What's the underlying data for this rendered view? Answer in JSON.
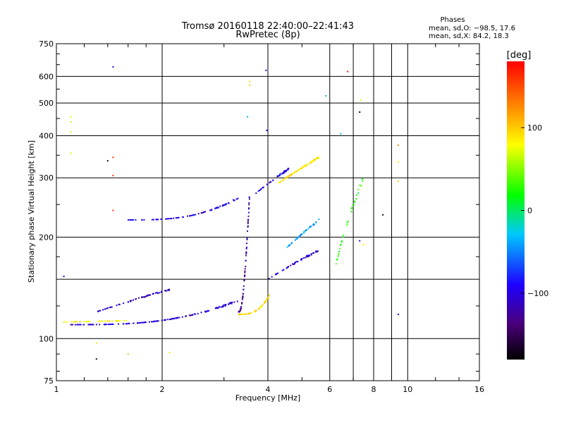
{
  "chart_data": {
    "type": "scatter",
    "title": "Tromsø 20160118 22:40:00–22:41:43",
    "subtitle": "RwPretec (8p)",
    "xlabel": "Frequency [MHz]",
    "ylabel": "Stationary phase Virtual Height [km]",
    "xscale": "log",
    "yscale": "log",
    "xlim": [
      1,
      16
    ],
    "ylim": [
      75,
      750
    ],
    "x_ticks": [
      1,
      2,
      4,
      6,
      8,
      10,
      16
    ],
    "x_tick_labels": [
      "1",
      "2",
      "4",
      "6",
      "8",
      "10",
      "16"
    ],
    "x_minor_gridlines": [
      7,
      9
    ],
    "y_ticks": [
      75,
      100,
      200,
      300,
      400,
      500,
      600,
      750
    ],
    "y_tick_labels": [
      "75",
      "100",
      "200",
      "300",
      "400",
      "500",
      "600",
      "750"
    ],
    "y_minor_gridlines": [
      150
    ],
    "grid": true,
    "phases_header": "Phases",
    "stats": [
      "mean, sd,O: −98.5, 17.6",
      "mean, sd,X:  84.2, 18.3"
    ],
    "colorbar": {
      "label": "[deg]",
      "range": [
        -180,
        180
      ],
      "ticks": [
        100,
        0,
        -100
      ],
      "tick_labels": [
        "100",
        "0",
        "−100"
      ],
      "colors": [
        "#000000",
        "#4a007a",
        "#1e00ff",
        "#00c8ff",
        "#00ff00",
        "#ffff00",
        "#ff8800",
        "#ff0000"
      ]
    },
    "series": [
      {
        "name": "lower trace O-mode (blue)",
        "phase": -100,
        "x_range": [
          1.1,
          3.3
        ],
        "h_start": 110,
        "h_end": 130,
        "bend": 3.0,
        "points": 140
      },
      {
        "name": "lower trace X-mode (yellow)",
        "phase": 90,
        "x_range": [
          1.05,
          1.6
        ],
        "h_start": 112,
        "h_end": 113,
        "bend": 1.0,
        "points": 40
      },
      {
        "name": "Es-like echoes (blue)",
        "phase": -105,
        "x_range": [
          1.3,
          2.1
        ],
        "h_start": 120,
        "h_end": 140,
        "bend": 1.0,
        "points": 60
      },
      {
        "name": "cusp O-mode (purple)",
        "phase": -120,
        "x_range": [
          3.3,
          3.55
        ],
        "h_start": 120,
        "h_end": 270,
        "bend": 2.5,
        "points": 70
      },
      {
        "name": "cusp X-mode (yellow)",
        "phase": 95,
        "x_range": [
          3.3,
          4.05
        ],
        "h_start": 118,
        "h_end": 135,
        "bend": 3.0,
        "points": 60
      },
      {
        "name": "upper F trace (blue)",
        "phase": -95,
        "x_range": [
          1.6,
          3.3
        ],
        "h_start": 225,
        "h_end": 262,
        "bend": 3.0,
        "points": 80
      },
      {
        "name": "F2 cluster X-mode (yellow)",
        "phase": 90,
        "x_range": [
          4.3,
          5.6
        ],
        "h_start": 290,
        "h_end": 345,
        "bend": 1.0,
        "points": 90
      },
      {
        "name": "F2 cluster O-mode (blue)",
        "phase": -95,
        "x_range": [
          3.7,
          4.6
        ],
        "h_start": 270,
        "h_end": 320,
        "bend": 1.0,
        "points": 45
      },
      {
        "name": "mid cluster (cyan)",
        "phase": -40,
        "x_range": [
          4.5,
          5.6
        ],
        "h_start": 185,
        "h_end": 225,
        "bend": 1.0,
        "points": 40
      },
      {
        "name": "mid cluster (blue)",
        "phase": -100,
        "x_range": [
          4.0,
          5.7
        ],
        "h_start": 150,
        "h_end": 185,
        "bend": 1.0,
        "points": 45
      },
      {
        "name": "high echoes (mixed)",
        "phase": 10,
        "x_range": [
          6.2,
          7.5
        ],
        "h_start": 160,
        "h_end": 300,
        "bend": 1.0,
        "points": 35
      }
    ],
    "scattered_points": [
      {
        "x": 1.45,
        "y": 640,
        "phase": -100
      },
      {
        "x": 3.95,
        "y": 625,
        "phase": -100
      },
      {
        "x": 6.75,
        "y": 620,
        "phase": 170
      },
      {
        "x": 3.55,
        "y": 580,
        "phase": 95
      },
      {
        "x": 3.55,
        "y": 565,
        "phase": 100
      },
      {
        "x": 5.85,
        "y": 525,
        "phase": -40
      },
      {
        "x": 7.35,
        "y": 510,
        "phase": 90
      },
      {
        "x": 7.3,
        "y": 470,
        "phase": -160
      },
      {
        "x": 1.1,
        "y": 455,
        "phase": 90
      },
      {
        "x": 1.1,
        "y": 440,
        "phase": 100
      },
      {
        "x": 3.5,
        "y": 455,
        "phase": -40
      },
      {
        "x": 1.1,
        "y": 410,
        "phase": 95
      },
      {
        "x": 3.97,
        "y": 415,
        "phase": -100
      },
      {
        "x": 6.45,
        "y": 405,
        "phase": -40
      },
      {
        "x": 9.4,
        "y": 375,
        "phase": 130
      },
      {
        "x": 1.1,
        "y": 355,
        "phase": 60
      },
      {
        "x": 1.45,
        "y": 345,
        "phase": 160
      },
      {
        "x": 1.4,
        "y": 337,
        "phase": -160
      },
      {
        "x": 9.4,
        "y": 335,
        "phase": 90
      },
      {
        "x": 1.45,
        "y": 305,
        "phase": 160
      },
      {
        "x": 9.4,
        "y": 293,
        "phase": 100
      },
      {
        "x": 1.45,
        "y": 240,
        "phase": 160
      },
      {
        "x": 8.5,
        "y": 233,
        "phase": -160
      },
      {
        "x": 7.3,
        "y": 195,
        "phase": -100
      },
      {
        "x": 7.5,
        "y": 190,
        "phase": 80
      },
      {
        "x": 1.05,
        "y": 153,
        "phase": -100
      },
      {
        "x": 9.4,
        "y": 118,
        "phase": -100
      },
      {
        "x": 1.3,
        "y": 97,
        "phase": 90
      },
      {
        "x": 1.6,
        "y": 90,
        "phase": 40
      },
      {
        "x": 1.3,
        "y": 87,
        "phase": -160
      },
      {
        "x": 2.1,
        "y": 91,
        "phase": 95
      }
    ]
  }
}
